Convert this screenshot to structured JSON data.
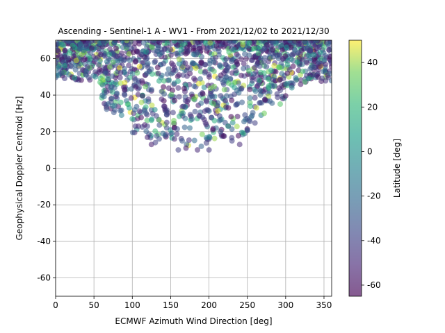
{
  "chart_data": {
    "type": "scatter",
    "title": "Ascending - Sentinel-1 A - WV1 - From 2021/12/02 to 2021/12/30",
    "xlabel": "ECMWF Azimuth Wind Direction [deg]",
    "ylabel": "Geophysical Doppler Centroid [Hz]",
    "xlim": [
      0,
      360
    ],
    "ylim": [
      -70,
      70
    ],
    "xticks": [
      0,
      50,
      100,
      150,
      200,
      250,
      300,
      350
    ],
    "yticks": [
      -60,
      -40,
      -20,
      0,
      20,
      40,
      60
    ],
    "grid": true,
    "colorbar": {
      "label": "Latitude [deg]",
      "range": [
        -65,
        50
      ],
      "ticks": [
        -60,
        -40,
        -20,
        0,
        20,
        40
      ],
      "colormap": "viridis",
      "alpha": 0.55
    },
    "point_count_estimate": 1800,
    "point_cloud_description": "dense cloud, Doppler roughly 10 to 70 Hz, concentrated at 40-70 Hz across all directions, sparser low values 10-30 Hz between 100 and 260 deg",
    "points": [
      {
        "x": 8,
        "y": 52,
        "lat": -30
      },
      {
        "x": 12,
        "y": 56,
        "lat": 10
      },
      {
        "x": 18,
        "y": 63,
        "lat": 20
      },
      {
        "x": 25,
        "y": 66,
        "lat": 5
      },
      {
        "x": 32,
        "y": 68,
        "lat": -10
      },
      {
        "x": 40,
        "y": 53,
        "lat": -20
      },
      {
        "x": 45,
        "y": 60,
        "lat": 15
      },
      {
        "x": 52,
        "y": 50,
        "lat": -5
      },
      {
        "x": 58,
        "y": 47,
        "lat": 25
      },
      {
        "x": 63,
        "y": 55,
        "lat": -40
      },
      {
        "x": 68,
        "y": 49,
        "lat": 10
      },
      {
        "x": 72,
        "y": 44,
        "lat": -15
      },
      {
        "x": 75,
        "y": 58,
        "lat": 30
      },
      {
        "x": 80,
        "y": 41,
        "lat": -25
      },
      {
        "x": 85,
        "y": 36,
        "lat": 20
      },
      {
        "x": 86,
        "y": 29,
        "lat": -10
      },
      {
        "x": 90,
        "y": 40,
        "lat": -35
      },
      {
        "x": 96,
        "y": 33,
        "lat": 5
      },
      {
        "x": 100,
        "y": 27,
        "lat": 15
      },
      {
        "x": 104,
        "y": 23,
        "lat": -45
      },
      {
        "x": 108,
        "y": 23,
        "lat": -50
      },
      {
        "x": 112,
        "y": 36,
        "lat": 40
      },
      {
        "x": 118,
        "y": 30,
        "lat": -30
      },
      {
        "x": 125,
        "y": 13,
        "lat": -55
      },
      {
        "x": 130,
        "y": 14,
        "lat": -40
      },
      {
        "x": 135,
        "y": 16,
        "lat": -35
      },
      {
        "x": 140,
        "y": 19,
        "lat": -20
      },
      {
        "x": 145,
        "y": 25,
        "lat": -45
      },
      {
        "x": 155,
        "y": 16,
        "lat": -50
      },
      {
        "x": 160,
        "y": 10,
        "lat": -40
      },
      {
        "x": 165,
        "y": 15,
        "lat": -30
      },
      {
        "x": 170,
        "y": 11,
        "lat": -55
      },
      {
        "x": 175,
        "y": 22,
        "lat": -20
      },
      {
        "x": 185,
        "y": 10,
        "lat": -50
      },
      {
        "x": 190,
        "y": 12,
        "lat": -25
      },
      {
        "x": 200,
        "y": 10,
        "lat": -45
      },
      {
        "x": 205,
        "y": 21,
        "lat": -60
      },
      {
        "x": 215,
        "y": 20,
        "lat": -30
      },
      {
        "x": 225,
        "y": 23,
        "lat": 10
      },
      {
        "x": 230,
        "y": 15,
        "lat": -40
      },
      {
        "x": 240,
        "y": 13,
        "lat": -50
      },
      {
        "x": 250,
        "y": 21,
        "lat": -35
      },
      {
        "x": 255,
        "y": 28,
        "lat": -20
      },
      {
        "x": 262,
        "y": 33,
        "lat": 45
      },
      {
        "x": 268,
        "y": 29,
        "lat": -10
      },
      {
        "x": 272,
        "y": 30,
        "lat": 35
      },
      {
        "x": 278,
        "y": 45,
        "lat": 20
      },
      {
        "x": 285,
        "y": 50,
        "lat": -15
      },
      {
        "x": 292,
        "y": 55,
        "lat": 30
      },
      {
        "x": 300,
        "y": 46,
        "lat": -25
      },
      {
        "x": 308,
        "y": 44,
        "lat": -5
      },
      {
        "x": 315,
        "y": 58,
        "lat": 15
      },
      {
        "x": 322,
        "y": 53,
        "lat": 25
      },
      {
        "x": 330,
        "y": 49,
        "lat": 10
      },
      {
        "x": 337,
        "y": 62,
        "lat": 5
      },
      {
        "x": 343,
        "y": 58,
        "lat": -30
      },
      {
        "x": 350,
        "y": 66,
        "lat": 20
      },
      {
        "x": 355,
        "y": 68,
        "lat": -15
      }
    ]
  }
}
